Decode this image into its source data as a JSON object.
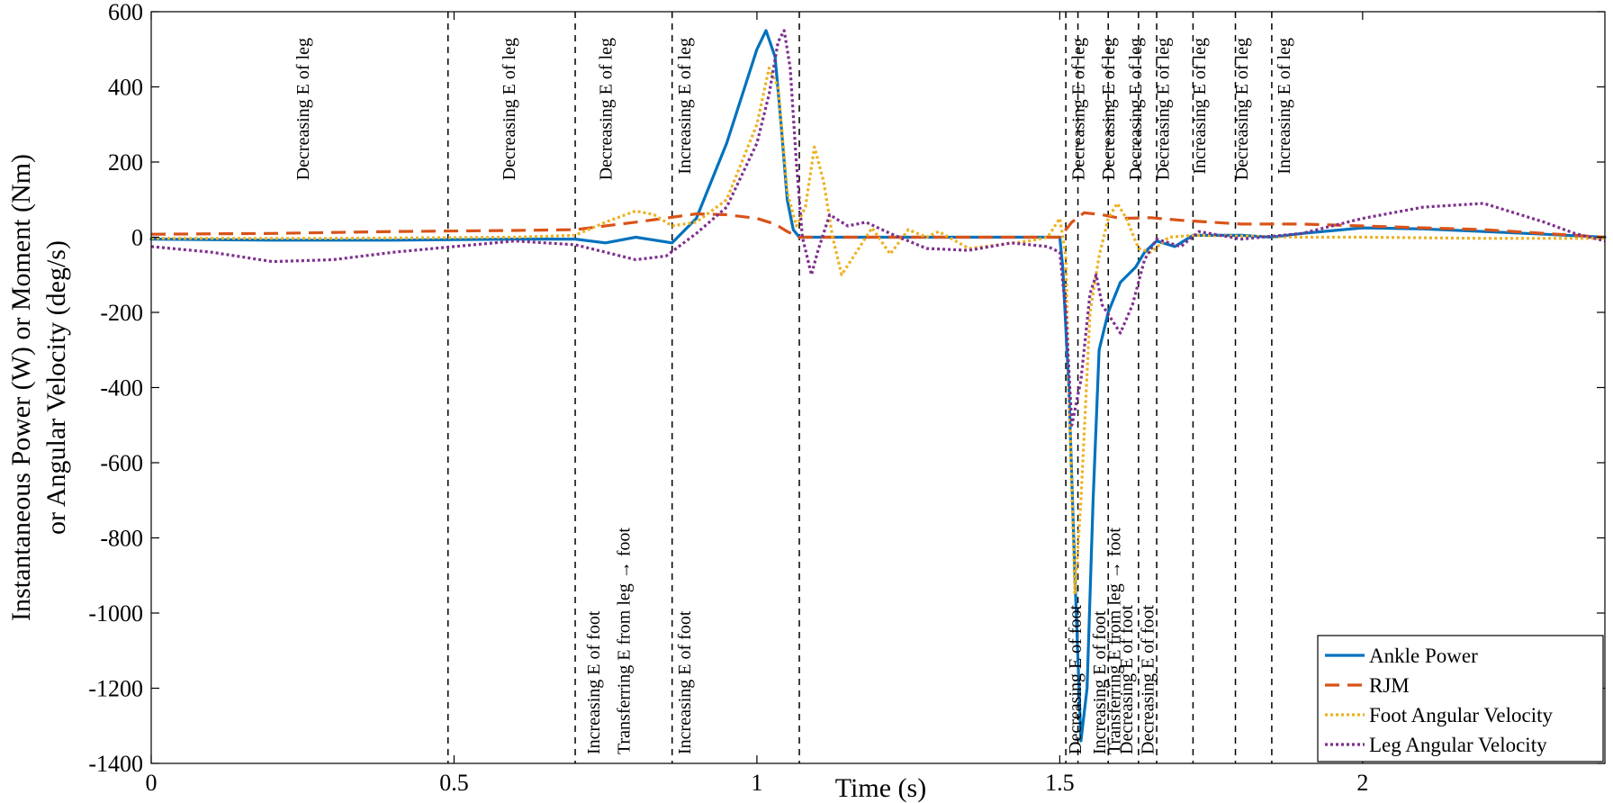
{
  "chart_data": {
    "type": "line",
    "xlabel": "Time (s)",
    "ylabel_lines": [
      "Instantaneous Power (W) or Moment (Nm)",
      "or Angular Velocity (deg/s)"
    ],
    "xlim": [
      0,
      2.4
    ],
    "ylim": [
      -1400,
      600
    ],
    "x_ticks": [
      0,
      0.5,
      1,
      1.5,
      2
    ],
    "x_tick_labels": [
      "0",
      "0.5",
      "1",
      "1.5",
      "2"
    ],
    "y_ticks": [
      600,
      400,
      200,
      0,
      -200,
      -400,
      -600,
      -800,
      -1000,
      -1200,
      -1400
    ],
    "y_tick_labels": [
      "600",
      "400",
      "200",
      "0",
      "-200",
      "-400",
      "-600",
      "-800",
      "-1000",
      "-1200",
      "-1400"
    ],
    "grid": false,
    "legend_position": "bottom-right",
    "phase_lines": [
      0.49,
      0.7,
      0.86,
      1.07,
      1.51,
      1.53,
      1.58,
      1.63,
      1.66,
      1.72,
      1.79,
      1.85
    ],
    "top_labels": [
      {
        "x": 0.26,
        "text": "Decreasing E of leg"
      },
      {
        "x": 0.6,
        "text": "Decreasing E of leg"
      },
      {
        "x": 0.76,
        "text": "Decreasing E of leg"
      },
      {
        "x": 0.89,
        "text": "Increasing E of leg"
      },
      {
        "x": 1.54,
        "text": "Decreasing E of leg"
      },
      {
        "x": 1.59,
        "text": "Decreasing E of leg"
      },
      {
        "x": 1.635,
        "text": "Decreasing E of leg"
      },
      {
        "x": 1.68,
        "text": "Decreasing E of leg"
      },
      {
        "x": 1.74,
        "text": "Increasing E of leg"
      },
      {
        "x": 1.81,
        "text": "Decreasing E of leg"
      },
      {
        "x": 1.88,
        "text": "Increasing E of leg"
      }
    ],
    "bottom_labels": [
      {
        "x": 0.74,
        "text": "Increasing E of foot"
      },
      {
        "x": 0.79,
        "text": "Transferring E from leg → foot"
      },
      {
        "x": 0.89,
        "text": "Increasing E of foot"
      },
      {
        "x": 1.535,
        "text": "Decreasing E of foot"
      },
      {
        "x": 1.575,
        "text": "Increasing E of foot"
      },
      {
        "x": 1.6,
        "text": "Transferring E from leg → foot"
      },
      {
        "x": 1.62,
        "text": "Decreasing E of foot"
      },
      {
        "x": 1.655,
        "text": "Decreasing E of foot"
      }
    ],
    "series": [
      {
        "name": "Ankle Power",
        "color": "#0072BD",
        "dash": "solid",
        "points": [
          [
            0,
            -5
          ],
          [
            0.2,
            -8
          ],
          [
            0.4,
            -8
          ],
          [
            0.6,
            -5
          ],
          [
            0.7,
            -5
          ],
          [
            0.75,
            -15
          ],
          [
            0.8,
            0
          ],
          [
            0.86,
            -15
          ],
          [
            0.9,
            50
          ],
          [
            0.95,
            250
          ],
          [
            0.98,
            400
          ],
          [
            1.0,
            500
          ],
          [
            1.015,
            550
          ],
          [
            1.03,
            480
          ],
          [
            1.04,
            300
          ],
          [
            1.05,
            100
          ],
          [
            1.06,
            20
          ],
          [
            1.07,
            0
          ],
          [
            1.2,
            0
          ],
          [
            1.4,
            0
          ],
          [
            1.5,
            0
          ],
          [
            1.505,
            -80
          ],
          [
            1.515,
            -400
          ],
          [
            1.525,
            -900
          ],
          [
            1.535,
            -1340
          ],
          [
            1.545,
            -1200
          ],
          [
            1.555,
            -700
          ],
          [
            1.565,
            -300
          ],
          [
            1.58,
            -200
          ],
          [
            1.6,
            -120
          ],
          [
            1.625,
            -80
          ],
          [
            1.64,
            -40
          ],
          [
            1.66,
            -10
          ],
          [
            1.69,
            -25
          ],
          [
            1.72,
            5
          ],
          [
            1.8,
            5
          ],
          [
            1.85,
            0
          ],
          [
            1.9,
            10
          ],
          [
            2.0,
            25
          ],
          [
            2.1,
            22
          ],
          [
            2.2,
            15
          ],
          [
            2.3,
            8
          ],
          [
            2.4,
            0
          ]
        ]
      },
      {
        "name": "RJM",
        "color": "#D95319",
        "dash": "dashed",
        "points": [
          [
            0,
            8
          ],
          [
            0.2,
            10
          ],
          [
            0.4,
            15
          ],
          [
            0.6,
            18
          ],
          [
            0.7,
            20
          ],
          [
            0.8,
            40
          ],
          [
            0.9,
            62
          ],
          [
            0.95,
            60
          ],
          [
            1.0,
            50
          ],
          [
            1.03,
            35
          ],
          [
            1.05,
            15
          ],
          [
            1.07,
            0
          ],
          [
            1.2,
            0
          ],
          [
            1.4,
            0
          ],
          [
            1.5,
            0
          ],
          [
            1.52,
            40
          ],
          [
            1.54,
            65
          ],
          [
            1.57,
            60
          ],
          [
            1.6,
            50
          ],
          [
            1.65,
            52
          ],
          [
            1.7,
            45
          ],
          [
            1.8,
            35
          ],
          [
            1.9,
            35
          ],
          [
            2.0,
            30
          ],
          [
            2.1,
            25
          ],
          [
            2.2,
            20
          ],
          [
            2.3,
            10
          ],
          [
            2.4,
            0
          ]
        ]
      },
      {
        "name": "Foot Angular Velocity",
        "color": "#EDB120",
        "dash": "dotted",
        "points": [
          [
            0,
            -3
          ],
          [
            0.3,
            -3
          ],
          [
            0.6,
            0
          ],
          [
            0.7,
            5
          ],
          [
            0.75,
            40
          ],
          [
            0.8,
            70
          ],
          [
            0.83,
            60
          ],
          [
            0.86,
            30
          ],
          [
            0.9,
            40
          ],
          [
            0.95,
            100
          ],
          [
            1.0,
            300
          ],
          [
            1.02,
            450
          ],
          [
            1.035,
            400
          ],
          [
            1.05,
            120
          ],
          [
            1.065,
            30
          ],
          [
            1.08,
            80
          ],
          [
            1.095,
            240
          ],
          [
            1.11,
            150
          ],
          [
            1.125,
            0
          ],
          [
            1.14,
            -100
          ],
          [
            1.16,
            -50
          ],
          [
            1.19,
            25
          ],
          [
            1.22,
            -45
          ],
          [
            1.25,
            20
          ],
          [
            1.28,
            0
          ],
          [
            1.3,
            15
          ],
          [
            1.35,
            -30
          ],
          [
            1.4,
            -20
          ],
          [
            1.45,
            -10
          ],
          [
            1.48,
            0
          ],
          [
            1.5,
            50
          ],
          [
            1.51,
            -50
          ],
          [
            1.515,
            -400
          ],
          [
            1.525,
            -950
          ],
          [
            1.535,
            -700
          ],
          [
            1.55,
            -200
          ],
          [
            1.565,
            -50
          ],
          [
            1.58,
            50
          ],
          [
            1.595,
            90
          ],
          [
            1.61,
            50
          ],
          [
            1.63,
            -30
          ],
          [
            1.65,
            -40
          ],
          [
            1.68,
            0
          ],
          [
            1.72,
            5
          ],
          [
            1.8,
            3
          ],
          [
            1.9,
            0
          ],
          [
            2.0,
            0
          ],
          [
            2.2,
            -3
          ],
          [
            2.4,
            -3
          ]
        ]
      },
      {
        "name": "Leg Angular Velocity",
        "color": "#7E2F8E",
        "dash": "dotted",
        "points": [
          [
            0,
            -25
          ],
          [
            0.1,
            -40
          ],
          [
            0.2,
            -65
          ],
          [
            0.3,
            -60
          ],
          [
            0.4,
            -40
          ],
          [
            0.5,
            -25
          ],
          [
            0.6,
            -10
          ],
          [
            0.7,
            -20
          ],
          [
            0.75,
            -40
          ],
          [
            0.8,
            -60
          ],
          [
            0.85,
            -50
          ],
          [
            0.9,
            10
          ],
          [
            0.95,
            80
          ],
          [
            1.0,
            250
          ],
          [
            1.02,
            380
          ],
          [
            1.035,
            520
          ],
          [
            1.045,
            550
          ],
          [
            1.055,
            450
          ],
          [
            1.065,
            200
          ],
          [
            1.075,
            0
          ],
          [
            1.09,
            -100
          ],
          [
            1.1,
            -40
          ],
          [
            1.12,
            60
          ],
          [
            1.15,
            30
          ],
          [
            1.18,
            40
          ],
          [
            1.22,
            10
          ],
          [
            1.28,
            -30
          ],
          [
            1.35,
            -35
          ],
          [
            1.42,
            -15
          ],
          [
            1.48,
            -25
          ],
          [
            1.5,
            -40
          ],
          [
            1.51,
            -200
          ],
          [
            1.52,
            -500
          ],
          [
            1.535,
            -380
          ],
          [
            1.55,
            -150
          ],
          [
            1.56,
            -100
          ],
          [
            1.57,
            -180
          ],
          [
            1.6,
            -255
          ],
          [
            1.62,
            -180
          ],
          [
            1.64,
            -60
          ],
          [
            1.66,
            -5
          ],
          [
            1.7,
            -25
          ],
          [
            1.73,
            15
          ],
          [
            1.8,
            -5
          ],
          [
            1.9,
            10
          ],
          [
            2.0,
            50
          ],
          [
            2.1,
            80
          ],
          [
            2.2,
            90
          ],
          [
            2.3,
            40
          ],
          [
            2.35,
            10
          ],
          [
            2.4,
            -10
          ]
        ]
      }
    ]
  }
}
